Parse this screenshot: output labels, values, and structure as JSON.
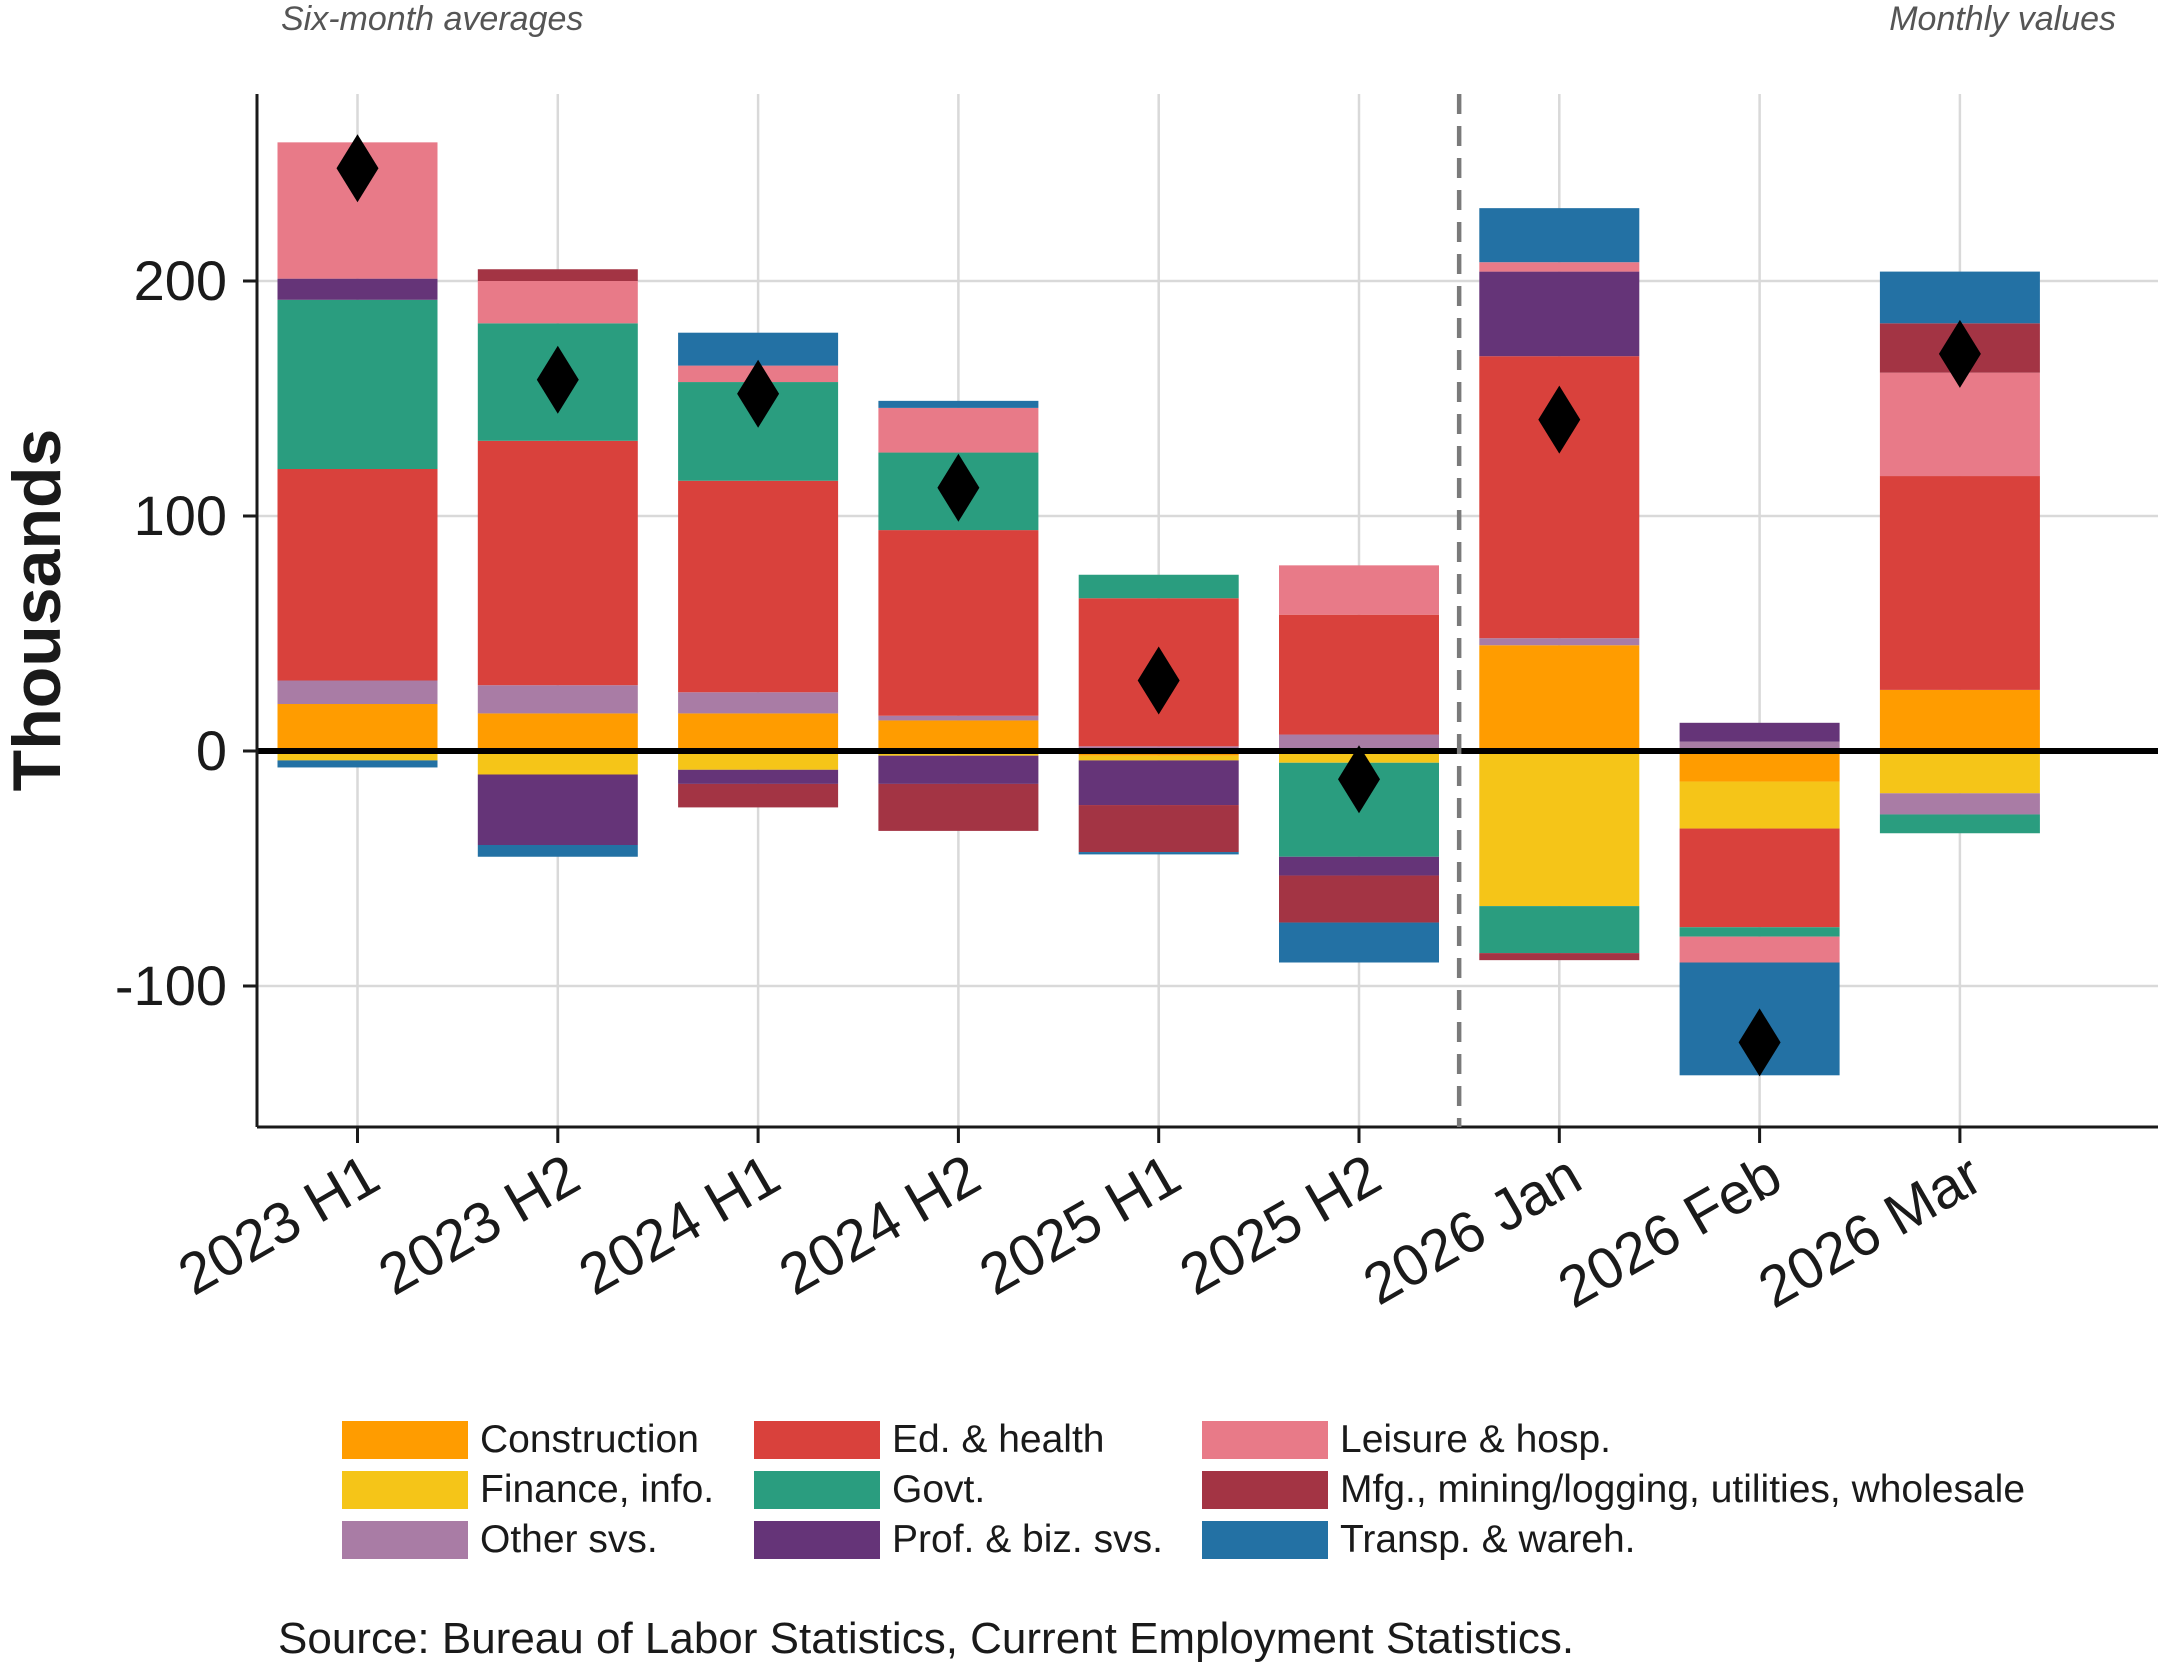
{
  "chart_data": {
    "type": "bar",
    "stacked": true,
    "ylabel": "Thousands",
    "ylim": [
      -160,
      280
    ],
    "yticks": [
      -100,
      0,
      100,
      200
    ],
    "grid": true,
    "legend_position": "bottom",
    "section_notes": {
      "left": "Six-month averages",
      "right": "Monthly values"
    },
    "source": "Source: Bureau of Labor Statistics, Current Employment Statistics.",
    "categories": [
      "2023 H1",
      "2023 H2",
      "2024 H1",
      "2024 H2",
      "2025 H1",
      "2025 H2",
      "2026 Jan",
      "2026 Feb",
      "2026 Mar"
    ],
    "divider_after_index": 5,
    "series": [
      {
        "name": "Construction",
        "color": "#ff9c00",
        "values": [
          20,
          16,
          16,
          13,
          -2,
          0,
          45,
          -13,
          26
        ]
      },
      {
        "name": "Finance, info.",
        "color": "#f5c518",
        "values": [
          -4,
          -10,
          -8,
          -2,
          -2,
          -5,
          -66,
          -20,
          -18
        ]
      },
      {
        "name": "Other svs.",
        "color": "#a97ca5",
        "values": [
          10,
          12,
          9,
          2,
          2,
          7,
          3,
          4,
          -9
        ]
      },
      {
        "name": "Ed. & health",
        "color": "#d9413c",
        "values": [
          90,
          104,
          90,
          79,
          63,
          51,
          120,
          -42,
          91
        ]
      },
      {
        "name": "Govt.",
        "color": "#2a9d7f",
        "values": [
          72,
          50,
          42,
          33,
          10,
          -40,
          -20,
          -4,
          -8
        ]
      },
      {
        "name": "Prof. & biz. svs.",
        "color": "#653478",
        "values": [
          9,
          -30,
          -6,
          -12,
          -19,
          -8,
          36,
          8,
          0
        ]
      },
      {
        "name": "Leisure & hosp.",
        "color": "#e87a88",
        "values": [
          58,
          18,
          7,
          19,
          0,
          21,
          4,
          -11,
          44
        ]
      },
      {
        "name": "Mfg., mining/logging, utilities, wholesale",
        "color": "#a33444",
        "values": [
          0,
          5,
          -10,
          -20,
          -20,
          -20,
          -3,
          0,
          21
        ]
      },
      {
        "name": "Transp. & wareh.",
        "color": "#2371a4",
        "values": [
          -3,
          -5,
          14,
          3,
          -1,
          -17,
          23,
          -48,
          22
        ]
      }
    ],
    "totals": [
      248,
      158,
      152,
      112,
      30,
      -12,
      141,
      -124,
      169
    ]
  }
}
